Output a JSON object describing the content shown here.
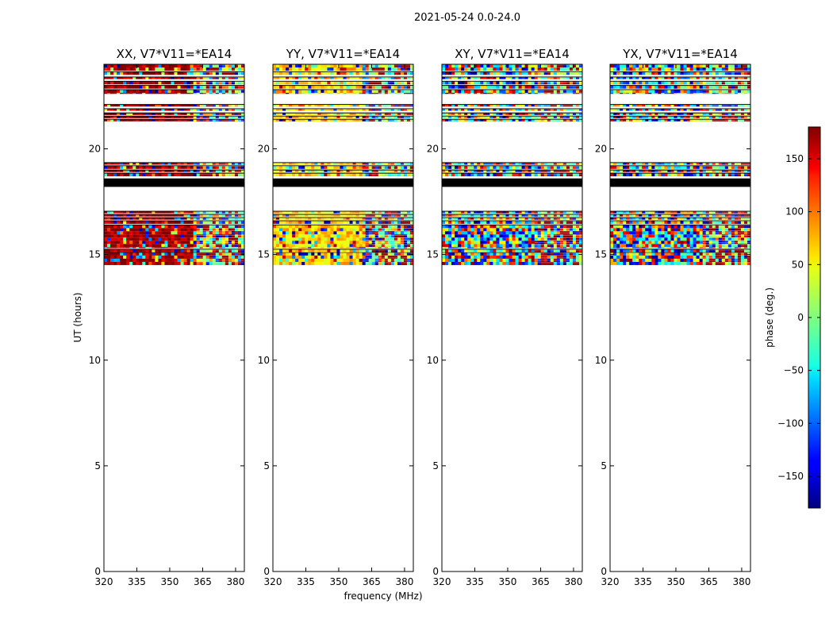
{
  "suptitle": "2021-05-24 0.0-24.0",
  "panels": [
    {
      "title": "XX, V7*V11=*EA14",
      "pol": "XX"
    },
    {
      "title": "YY, V7*V11=*EA14",
      "pol": "YY"
    },
    {
      "title": "XY, V7*V11=*EA14",
      "pol": "XY"
    },
    {
      "title": "YX, V7*V11=*EA14",
      "pol": "YX"
    }
  ],
  "chart_data": {
    "type": "heatmap",
    "title": "2021-05-24 0.0-24.0",
    "xlabel": "frequency (MHz)",
    "ylabel": "UT (hours)",
    "xlim": [
      320,
      384
    ],
    "ylim": [
      0,
      24
    ],
    "xticks": [
      320,
      335,
      350,
      365,
      380
    ],
    "yticks": [
      0,
      5,
      10,
      15,
      20
    ],
    "colorbar": {
      "label": "phase (deg.)",
      "range": [
        -180,
        180
      ],
      "ticks": [
        -150,
        -100,
        -50,
        0,
        50,
        100,
        150
      ],
      "colormap": "jet"
    },
    "data_bands_ut": [
      [
        14.5,
        15.1
      ],
      [
        15.1,
        15.25
      ],
      [
        15.3,
        16.4
      ],
      [
        16.45,
        16.6
      ],
      [
        16.65,
        16.75
      ],
      [
        16.8,
        16.9
      ],
      [
        16.95,
        17.05
      ],
      [
        18.7,
        18.85
      ],
      [
        18.9,
        19.0
      ],
      [
        19.05,
        19.2
      ],
      [
        19.25,
        19.35
      ],
      [
        21.3,
        21.4
      ],
      [
        21.45,
        21.55
      ],
      [
        21.6,
        21.7
      ],
      [
        21.8,
        21.9
      ],
      [
        22.0,
        22.1
      ],
      [
        22.6,
        22.8
      ],
      [
        22.85,
        23.0
      ],
      [
        23.05,
        23.2
      ],
      [
        23.3,
        23.4
      ],
      [
        23.5,
        23.65
      ],
      [
        23.7,
        24.0
      ]
    ],
    "black_flag_band_ut": [
      18.2,
      18.6
    ],
    "panel_phase_patterns": [
      {
        "pol": "XX",
        "low_freq_phase_deg": 170,
        "low_freq_extent_mhz": [
          320,
          361
        ],
        "high_freq": "noise"
      },
      {
        "pol": "YY",
        "low_freq_phase_deg": 60,
        "low_freq_extent_mhz": [
          320,
          361
        ],
        "high_freq": "noise"
      },
      {
        "pol": "XY",
        "low_freq_phase_deg": null,
        "low_freq_extent_mhz": [
          320,
          384
        ],
        "high_freq": "noise"
      },
      {
        "pol": "YX",
        "low_freq_phase_deg": null,
        "low_freq_extent_mhz": [
          320,
          384
        ],
        "high_freq": "noise"
      }
    ]
  }
}
